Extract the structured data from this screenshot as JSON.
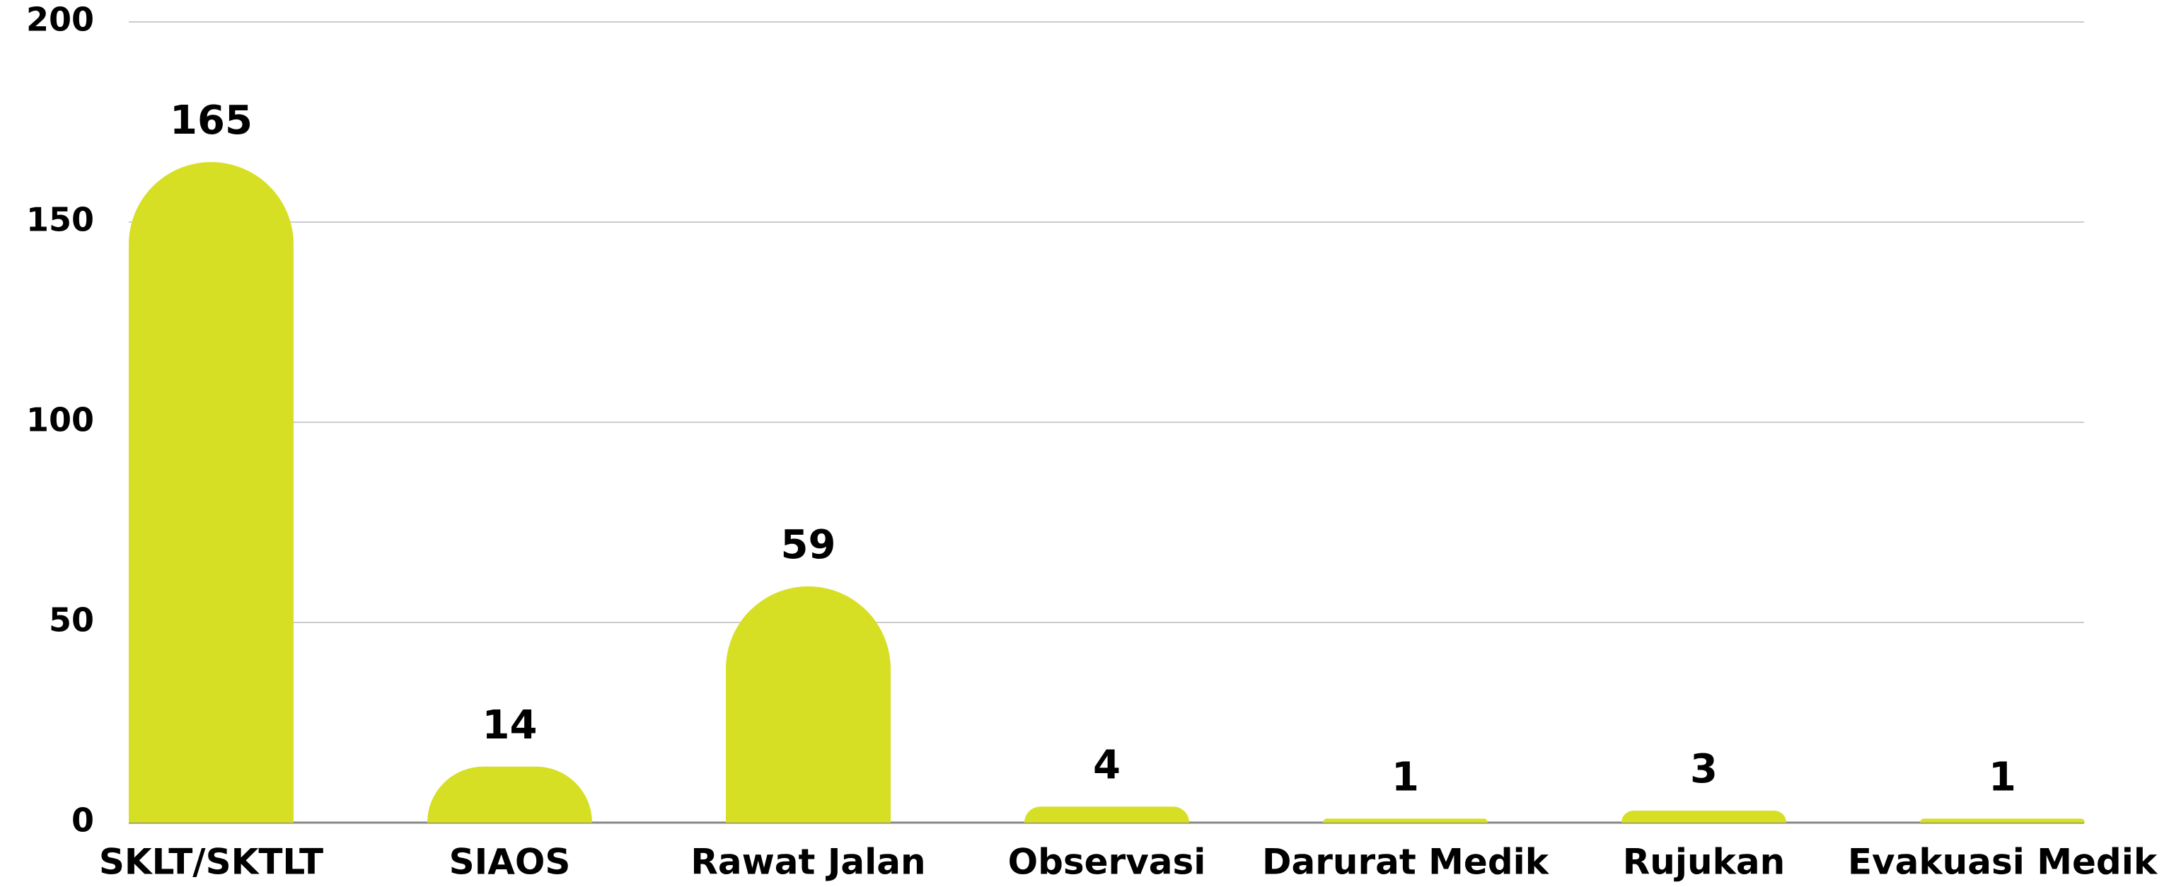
{
  "chart_data": {
    "type": "bar",
    "categories": [
      "SKLT/SKTLT",
      "SIAOS",
      "Rawat Jalan",
      "Observasi",
      "Darurat Medik",
      "Rujukan",
      "Evakuasi Medik"
    ],
    "values": [
      165,
      14,
      59,
      4,
      1,
      3,
      1
    ],
    "color": "#d6df23",
    "ylim": [
      0,
      200
    ],
    "yticks": [
      0,
      50,
      100,
      150,
      200
    ],
    "grid": true
  }
}
